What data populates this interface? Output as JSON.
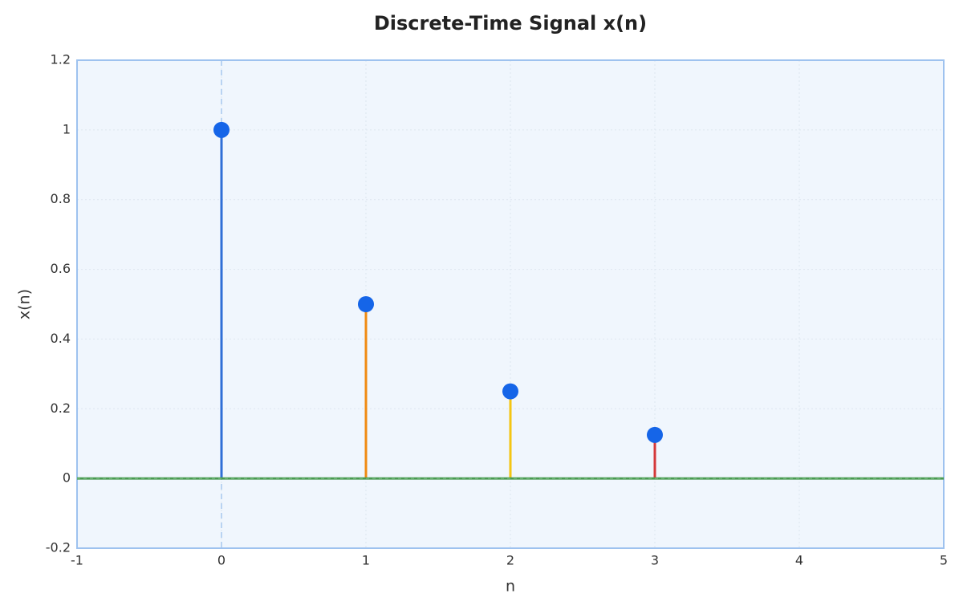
{
  "chart_data": {
    "type": "stem",
    "title": "Discrete-Time Signal x(n)",
    "x_label": "n",
    "y_label": "x(n)",
    "x": [
      0,
      1,
      2,
      3
    ],
    "values": [
      1,
      0.5,
      0.25,
      0.125
    ],
    "stem_colors": [
      "#2f6fd6",
      "#f08a12",
      "#f4c514",
      "#d4383a"
    ],
    "marker_color": "#1565e8",
    "baseline_color": "#4a9a52",
    "xlim": [
      -1,
      5
    ],
    "xticks": [
      -1,
      0,
      1,
      2,
      3,
      4,
      5
    ],
    "ylim": [
      -0.2,
      1.2
    ],
    "yticks": [
      -0.2,
      0,
      0.2,
      0.4,
      0.6,
      0.8,
      1,
      1.2
    ],
    "grid": true
  }
}
